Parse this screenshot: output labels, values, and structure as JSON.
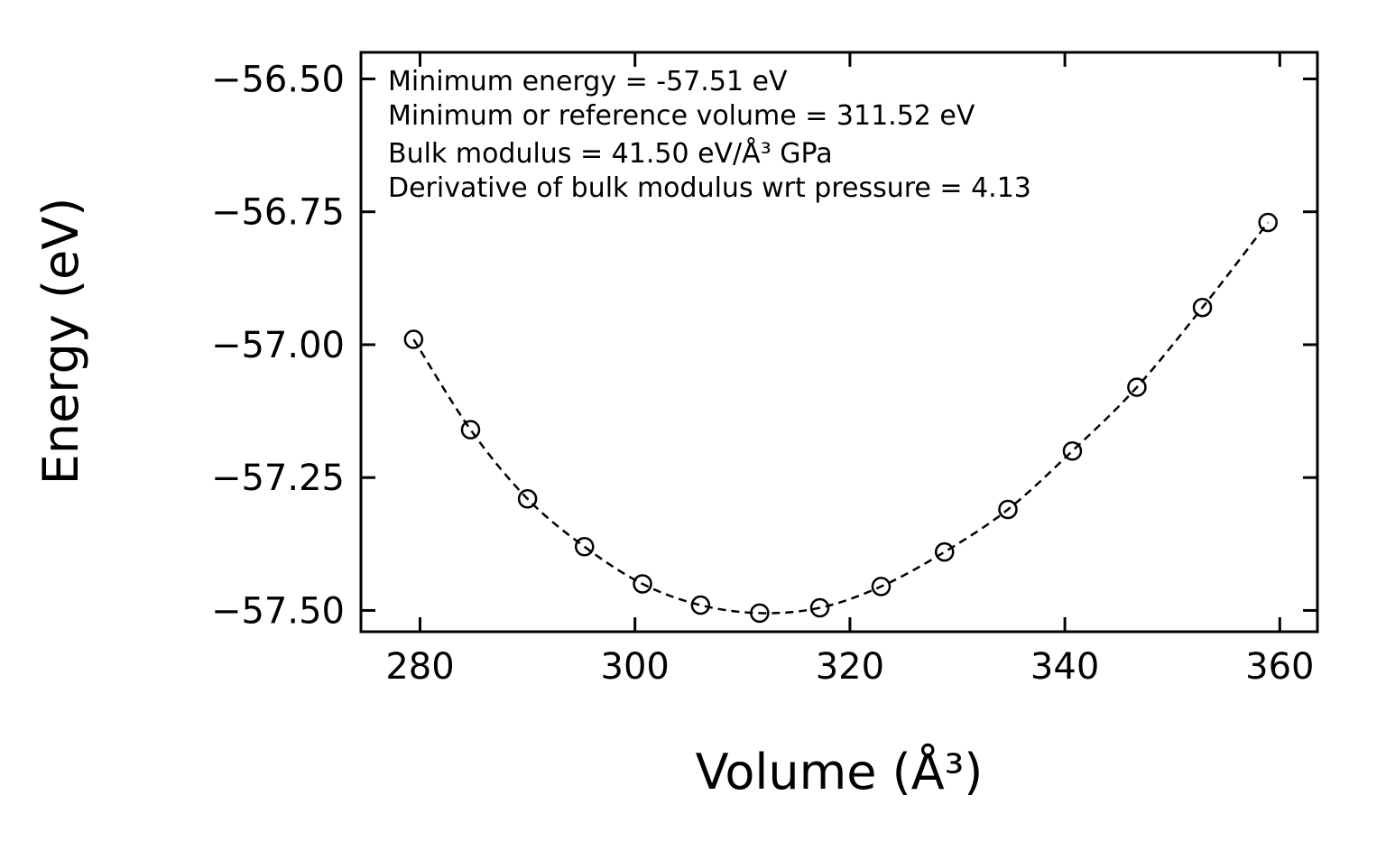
{
  "figure": {
    "background_color": "#ffffff",
    "ink_color": "#000000"
  },
  "chart_data": {
    "type": "scatter",
    "title": "",
    "xlabel": "Volume (Å³)",
    "ylabel": "Energy (eV)",
    "xlim": [
      274.5,
      363.5
    ],
    "ylim": [
      -57.54,
      -56.45
    ],
    "grid": false,
    "legend": null,
    "x_ticks": [
      280,
      300,
      320,
      340,
      360
    ],
    "x_tick_labels": [
      "280",
      "300",
      "320",
      "340",
      "360"
    ],
    "y_ticks": [
      -56.5,
      -56.75,
      -57.0,
      -57.25,
      -57.5
    ],
    "y_tick_labels": [
      "−56.50",
      "−56.75",
      "−57.00",
      "−57.25",
      "−57.50"
    ],
    "series": [
      {
        "name": "energy-volume-points",
        "marker": "open-circle",
        "line_style": "dashed",
        "color": "#000000",
        "x": [
          279.4,
          284.7,
          290.0,
          295.3,
          300.7,
          306.1,
          311.6,
          317.2,
          322.9,
          328.8,
          334.7,
          340.7,
          346.7,
          352.8,
          358.9
        ],
        "y": [
          -56.99,
          -57.16,
          -57.29,
          -57.38,
          -57.45,
          -57.49,
          -57.505,
          -57.495,
          -57.455,
          -57.39,
          -57.31,
          -57.2,
          -57.08,
          -56.93,
          -56.77
        ]
      }
    ],
    "annotations": [
      "Minimum energy = -57.51 eV",
      "Minimum or reference volume = 311.52 eV",
      "Bulk modulus = 41.50 eV/Å³ GPa",
      "Derivative of bulk modulus wrt pressure = 4.13"
    ],
    "fit_results": {
      "minimum_energy_eV": -57.51,
      "minimum_or_reference_volume": 311.52,
      "bulk_modulus": 41.5,
      "bulk_modulus_pressure_derivative": 4.13
    }
  }
}
